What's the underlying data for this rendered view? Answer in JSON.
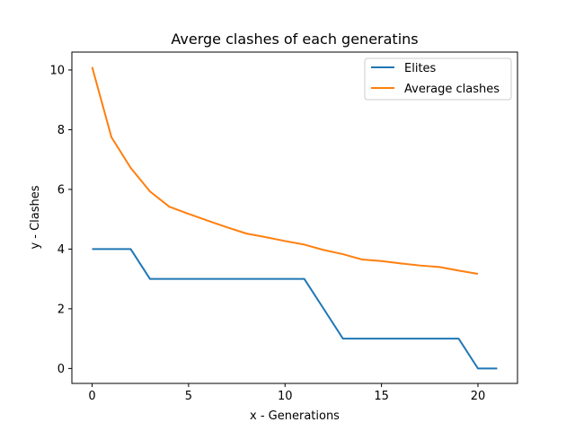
{
  "chart_data": {
    "type": "line",
    "title": "Averge clashes of each generatins",
    "xlabel": "x - Generations",
    "ylabel": "y - Clashes",
    "xlim": [
      -1.05,
      22.05
    ],
    "ylim": [
      -0.5,
      10.6
    ],
    "xticks": [
      0,
      5,
      10,
      15,
      20
    ],
    "yticks": [
      0,
      2,
      4,
      6,
      8,
      10
    ],
    "grid": false,
    "legend_position": "top-right",
    "series": [
      {
        "name": "Elites",
        "color": "#1f77b4",
        "x": [
          0,
          1,
          2,
          3,
          4,
          5,
          6,
          7,
          8,
          9,
          10,
          11,
          12,
          13,
          14,
          15,
          16,
          17,
          18,
          19,
          20,
          21
        ],
        "y": [
          4,
          4,
          4,
          3,
          3,
          3,
          3,
          3,
          3,
          3,
          3,
          3,
          2,
          1,
          1,
          1,
          1,
          1,
          1,
          1,
          0,
          0
        ]
      },
      {
        "name": "Average clashes",
        "color": "#ff7f0e",
        "x": [
          0,
          1,
          2,
          3,
          4,
          5,
          6,
          7,
          8,
          9,
          10,
          11,
          12,
          13,
          14,
          15,
          16,
          17,
          18,
          19,
          20
        ],
        "y": [
          10.1,
          7.75,
          6.72,
          5.93,
          5.42,
          5.18,
          4.95,
          4.73,
          4.52,
          4.4,
          4.27,
          4.15,
          3.97,
          3.83,
          3.65,
          3.6,
          3.52,
          3.45,
          3.4,
          3.28,
          3.17
        ]
      }
    ]
  }
}
